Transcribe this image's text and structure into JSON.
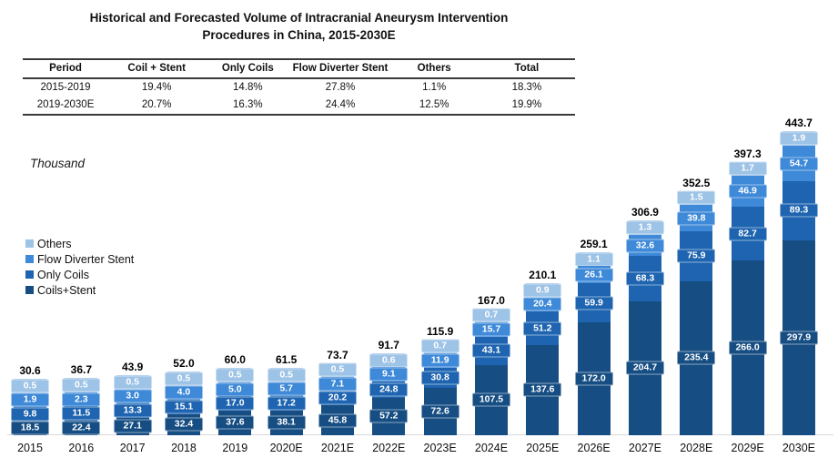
{
  "title": {
    "line1": "Historical and Forecasted Volume of Intracranial Aneurysm Intervention",
    "line2": "Procedures in China, 2015-2030E"
  },
  "table": {
    "headers": [
      "Period",
      "Coil + Stent",
      "Only Coils",
      "Flow Diverter Stent",
      "Others",
      "Total"
    ],
    "rows": [
      [
        "2015-2019",
        "19.4%",
        "14.8%",
        "27.8%",
        "1.1%",
        "18.3%"
      ],
      [
        "2019-2030E",
        "20.7%",
        "16.3%",
        "24.4%",
        "12.5%",
        "19.9%"
      ]
    ]
  },
  "axis_unit": "Thousand",
  "legend": [
    {
      "label": "Others",
      "color": "#9DC3E6"
    },
    {
      "label": "Flow Diverter Stent",
      "color": "#3E89D8"
    },
    {
      "label": "Only Coils",
      "color": "#1E64B0"
    },
    {
      "label": "Coils+Stent",
      "color": "#164D82"
    }
  ],
  "chart_data": {
    "type": "bar",
    "stacked": true,
    "title": "Historical and Forecasted Volume of Intracranial Aneurysm Intervention Procedures in China, 2015-2030E",
    "ylabel": "Thousand",
    "xlabel": "",
    "legend_position": "left",
    "grid": false,
    "categories": [
      "2015",
      "2016",
      "2017",
      "2018",
      "2019",
      "2020E",
      "2021E",
      "2022E",
      "2023E",
      "2024E",
      "2025E",
      "2026E",
      "2027E",
      "2028E",
      "2029E",
      "2030E"
    ],
    "series": [
      {
        "name": "Coils+Stent",
        "color": "#164D82",
        "values": [
          18.5,
          22.4,
          27.1,
          32.4,
          37.6,
          38.1,
          45.8,
          57.2,
          72.6,
          107.5,
          137.6,
          172.0,
          204.7,
          235.4,
          266.0,
          297.9
        ]
      },
      {
        "name": "Only Coils",
        "color": "#1E64B0",
        "values": [
          9.8,
          11.5,
          13.3,
          15.1,
          17.0,
          17.2,
          20.2,
          24.8,
          30.8,
          43.1,
          51.2,
          59.9,
          68.3,
          75.9,
          82.7,
          89.3
        ]
      },
      {
        "name": "Flow Diverter Stent",
        "color": "#3E89D8",
        "values": [
          1.9,
          2.3,
          3.0,
          4.0,
          5.0,
          5.7,
          7.1,
          9.1,
          11.9,
          15.7,
          20.4,
          26.1,
          32.6,
          39.8,
          46.9,
          54.7
        ]
      },
      {
        "name": "Others",
        "color": "#9DC3E6",
        "values": [
          0.5,
          0.5,
          0.5,
          0.5,
          0.5,
          0.5,
          0.5,
          0.6,
          0.7,
          0.7,
          0.9,
          1.1,
          1.3,
          1.5,
          1.7,
          1.9
        ]
      }
    ],
    "totals": [
      30.6,
      36.7,
      43.9,
      52.0,
      60.0,
      61.5,
      73.7,
      91.7,
      115.9,
      167.0,
      210.1,
      259.1,
      306.9,
      352.5,
      397.3,
      443.7
    ]
  }
}
